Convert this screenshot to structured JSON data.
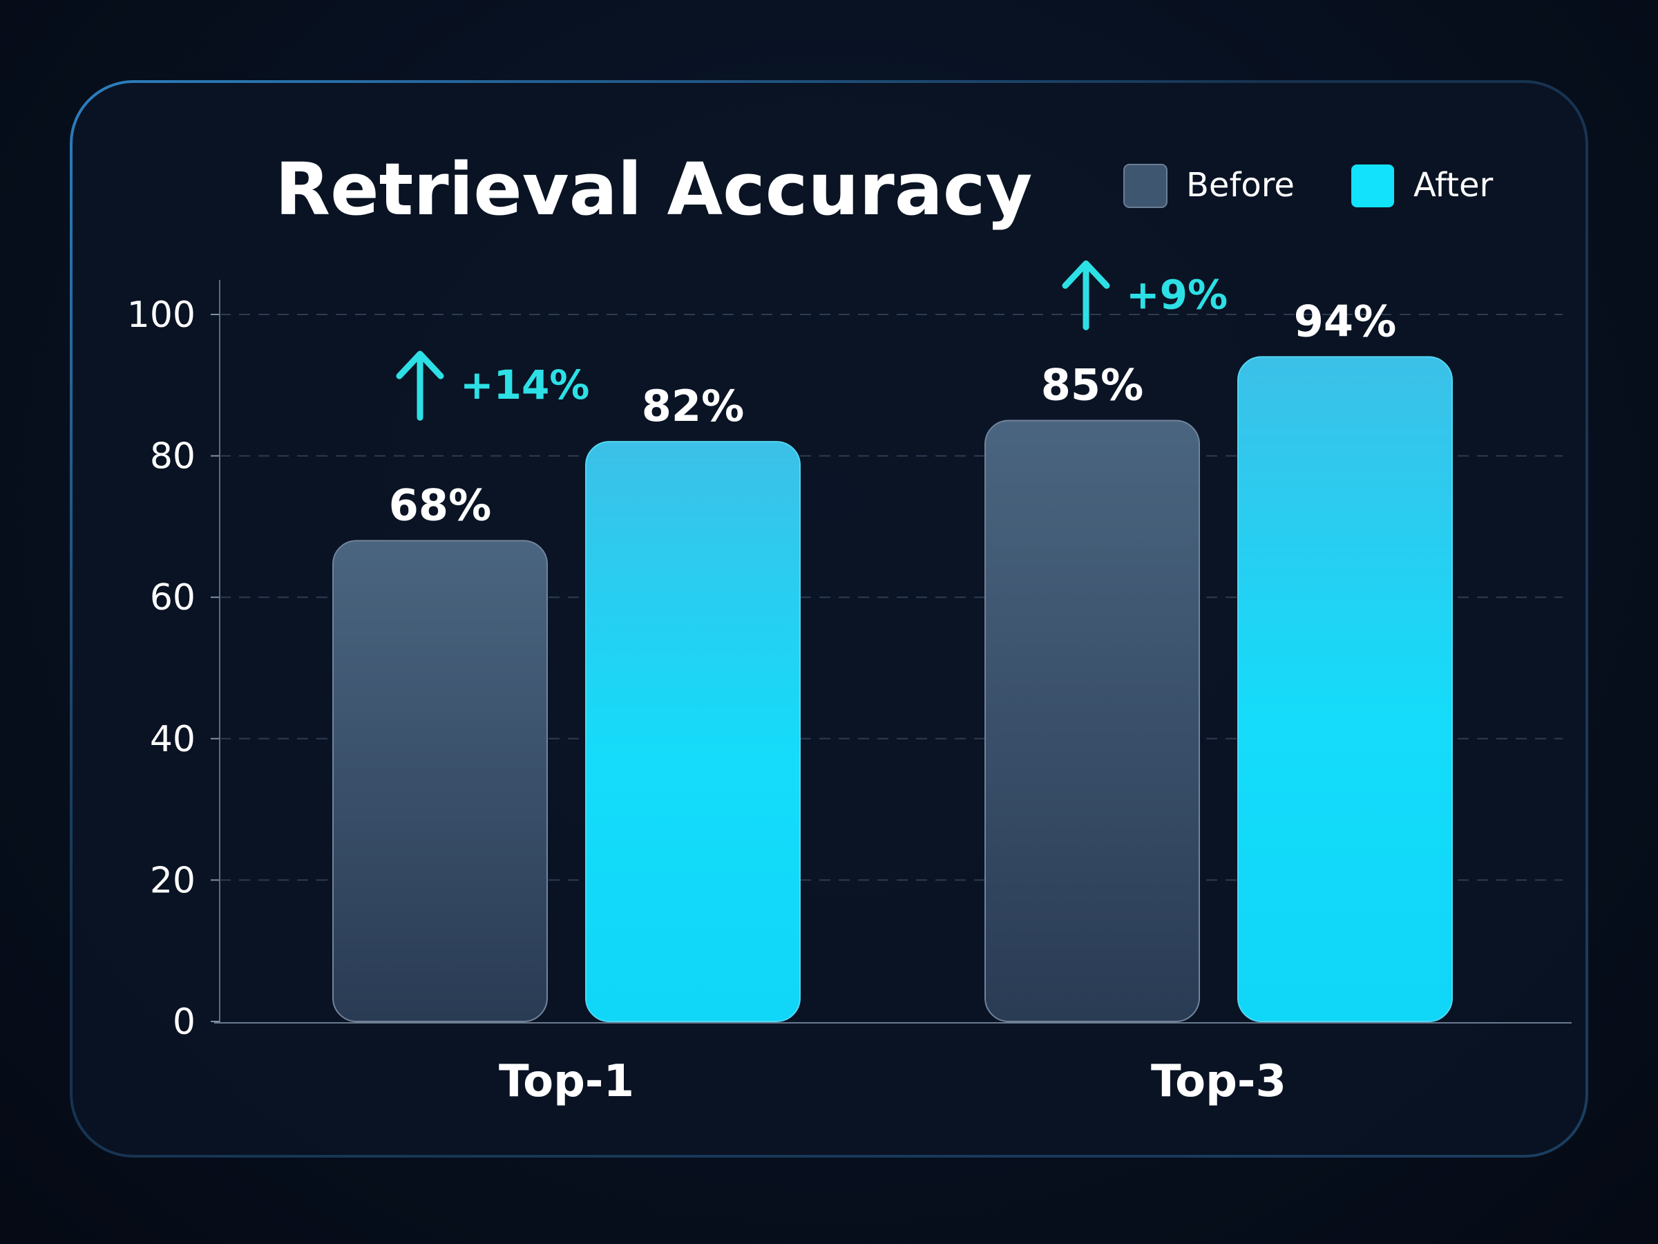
{
  "colors": {
    "background": "#070e1b",
    "panel": "#0a1424",
    "before": "#3f5670",
    "after": "#16d8f5",
    "delta": "#2de0e6",
    "text": "#ffffff"
  },
  "chart_data": {
    "type": "bar",
    "title": "Retrieval Accuracy",
    "xlabel": "",
    "ylabel": "",
    "ylim": [
      0,
      100
    ],
    "yticks": [
      0,
      20,
      40,
      60,
      80,
      100
    ],
    "grid": true,
    "legend_position": "top-right",
    "categories": [
      "Top-1",
      "Top-3"
    ],
    "series": [
      {
        "name": "Before",
        "values": [
          68,
          85
        ],
        "labels": [
          "68%",
          "85%"
        ]
      },
      {
        "name": "After",
        "values": [
          82,
          94
        ],
        "labels": [
          "82%",
          "94%"
        ]
      }
    ],
    "annotations": [
      {
        "category": "Top-1",
        "text": "+14%",
        "icon": "arrow-up-icon"
      },
      {
        "category": "Top-3",
        "text": "+9%",
        "icon": "arrow-up-icon"
      }
    ]
  }
}
